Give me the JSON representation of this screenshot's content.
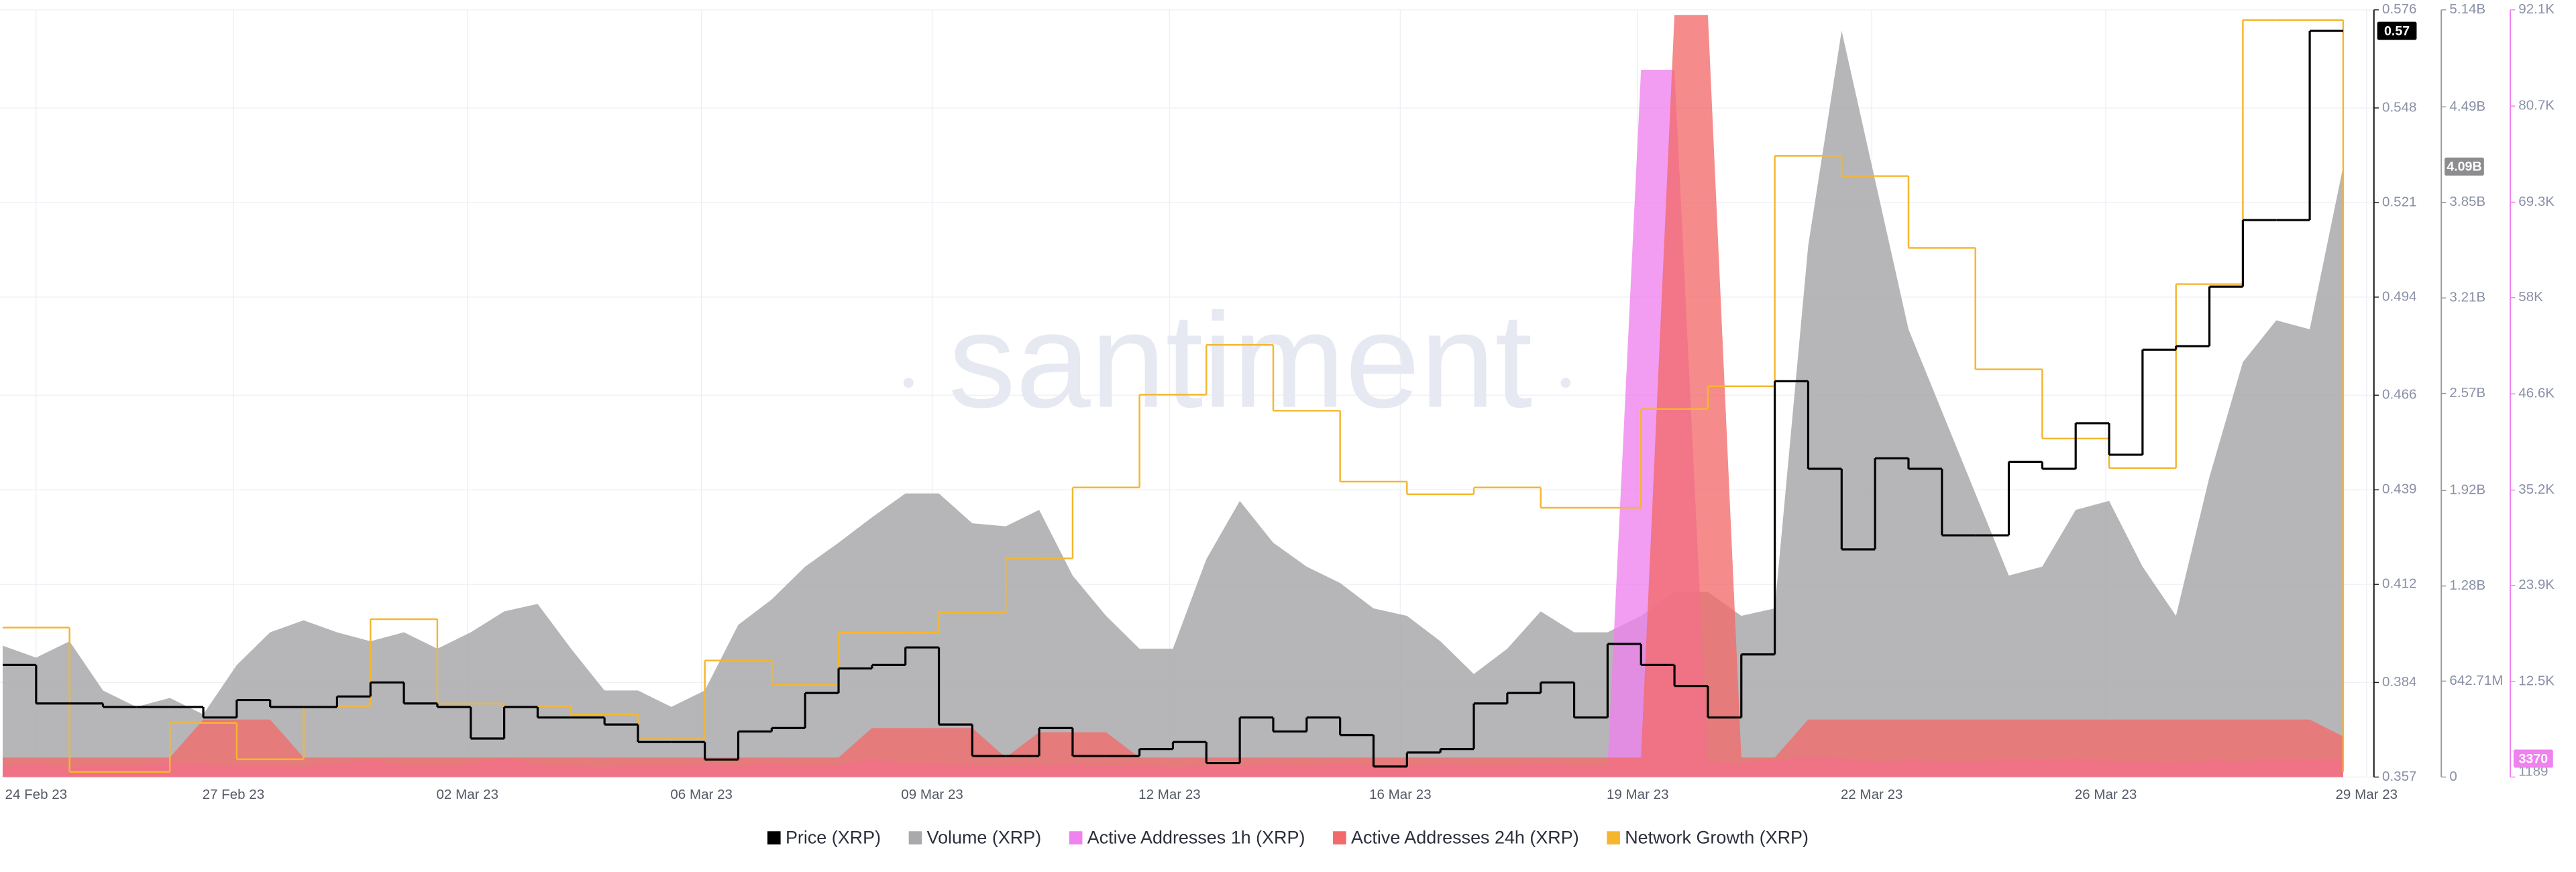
{
  "chart_data": {
    "type": "line",
    "watermark": "santiment",
    "grid": true,
    "legend": "bottom",
    "x": [
      -0.5,
      0,
      0.5,
      1,
      1.5,
      2,
      2.5,
      3,
      3.5,
      4,
      4.5,
      5,
      5.5,
      6,
      6.5,
      7,
      7.5,
      8,
      8.5,
      9,
      9.5,
      10,
      10.5,
      11,
      11.5,
      12,
      12.5,
      13,
      13.5,
      14,
      14.5,
      15,
      15.5,
      16,
      16.5,
      17,
      17.5,
      18,
      18.5,
      19,
      19.5,
      20,
      20.5,
      21,
      21.5,
      22,
      22.5,
      23,
      23.5,
      24,
      24.5,
      25,
      25.5,
      26,
      26.5,
      27,
      27.5,
      28,
      28.5,
      29,
      29.5,
      30,
      30.5,
      31,
      31.5,
      32,
      32.5,
      33,
      33.5,
      34,
      34.5
    ],
    "xlim": [
      -0.54,
      34.96
    ],
    "xticks": [
      {
        "value": 0,
        "label": "24 Feb 23"
      },
      {
        "value": 2.95,
        "label": "27 Feb 23"
      },
      {
        "value": 6.45,
        "label": "02 Mar 23"
      },
      {
        "value": 9.95,
        "label": "06 Mar 23"
      },
      {
        "value": 13.4,
        "label": "09 Mar 23"
      },
      {
        "value": 16.95,
        "label": "12 Mar 23"
      },
      {
        "value": 20.4,
        "label": "16 Mar 23"
      },
      {
        "value": 23.95,
        "label": "19 Mar 23"
      },
      {
        "value": 27.45,
        "label": "22 Mar 23"
      },
      {
        "value": 30.95,
        "label": "26 Mar 23"
      },
      {
        "value": 34.85,
        "label": "29 Mar 23"
      }
    ],
    "ylim": [
      0.357,
      0.576
    ],
    "yticks": [
      0.357,
      0.384,
      0.412,
      0.439,
      0.466,
      0.494,
      0.521,
      0.548,
      0.576
    ],
    "y2lim": [
      0,
      5140000000
    ],
    "y2ticks": [
      0,
      {
        "value": 642710000,
        "label": "642.71M"
      },
      {
        "value": 1280000000,
        "label": "1.28B"
      },
      {
        "value": 1920000000,
        "label": "1.92B"
      },
      {
        "value": 2570000000,
        "label": "2.57B"
      },
      {
        "value": 3210000000,
        "label": "3.21B"
      },
      {
        "value": 3850000000,
        "label": "3.85B"
      },
      {
        "value": 4490000000,
        "label": "4.49B"
      },
      {
        "value": 5140000000,
        "label": "5.14B"
      }
    ],
    "y3lim": [
      1189,
      92100
    ],
    "y3ticks": [
      1189,
      {
        "value": 12500,
        "label": "12.5K"
      },
      {
        "value": 23900,
        "label": "23.9K"
      },
      {
        "value": 35200,
        "label": "35.2K"
      },
      {
        "value": 46600,
        "label": "46.6K"
      },
      {
        "value": 58000,
        "label": "58K"
      },
      {
        "value": 69300,
        "label": "69.3K"
      },
      {
        "value": 80700,
        "label": "80.7K"
      },
      {
        "value": 92100,
        "label": "92.1K"
      }
    ],
    "series": [
      {
        "name": "Price (XRP)",
        "color": "#000000",
        "type": "step",
        "axis": "y",
        "last_value_label": "0.57",
        "values": [
          0.389,
          0.378,
          0.378,
          0.377,
          0.377,
          0.377,
          0.374,
          0.379,
          0.377,
          0.377,
          0.38,
          0.384,
          0.378,
          0.377,
          0.368,
          0.377,
          0.374,
          0.374,
          0.372,
          0.367,
          0.367,
          0.362,
          0.37,
          0.371,
          0.381,
          0.388,
          0.389,
          0.394,
          0.372,
          0.363,
          0.363,
          0.371,
          0.363,
          0.363,
          0.365,
          0.367,
          0.361,
          0.374,
          0.37,
          0.374,
          0.369,
          0.36,
          0.364,
          0.365,
          0.378,
          0.381,
          0.384,
          0.374,
          0.395,
          0.389,
          0.383,
          0.374,
          0.392,
          0.47,
          0.445,
          0.422,
          0.448,
          0.445,
          0.426,
          0.426,
          0.447,
          0.445,
          0.458,
          0.449,
          0.479,
          0.48,
          0.497,
          0.516,
          0.516,
          0.57,
          0.57
        ]
      },
      {
        "name": "Volume (XRP)",
        "color": "#a9a9ab",
        "type": "area",
        "axis": "y2",
        "last_value_label": "4.09B",
        "values": [
          880000000,
          800000000,
          910000000,
          580000000,
          470000000,
          530000000,
          420000000,
          750000000,
          970000000,
          1050000000,
          970000000,
          910000000,
          970000000,
          860000000,
          970000000,
          1110000000,
          1160000000,
          860000000,
          580000000,
          580000000,
          470000000,
          580000000,
          1020000000,
          1190000000,
          1410000000,
          1570000000,
          1740000000,
          1900000000,
          1900000000,
          1700000000,
          1680000000,
          1790000000,
          1350000000,
          1080000000,
          860000000,
          860000000,
          1460000000,
          1850000000,
          1570000000,
          1410000000,
          1300000000,
          1130000000,
          1080000000,
          910000000,
          690000000,
          860000000,
          1110000000,
          970000000,
          970000000,
          1080000000,
          1240000000,
          1240000000,
          1080000000,
          1130000000,
          3560000000,
          5000000000,
          4000000000,
          3000000000,
          2450000000,
          1900000000,
          1350000000,
          1410000000,
          1790000000,
          1850000000,
          1410000000,
          1080000000,
          2010000000,
          2780000000,
          3060000000,
          3000000000,
          4090000000
        ]
      },
      {
        "name": "Active Addresses 1h (XRP)",
        "color": "#ee82ee",
        "type": "area",
        "axis": "y3",
        "last_value_label": "3370",
        "values": [
          2500,
          2800,
          2400,
          2600,
          2500,
          3000,
          2700,
          2500,
          2600,
          2400,
          2800,
          3200,
          2600,
          2500,
          2700,
          3500,
          2600,
          2500,
          2400,
          2600,
          2500,
          2700,
          2600,
          2800,
          2500,
          2600,
          3400,
          2800,
          2700,
          2600,
          2500,
          2600,
          2700,
          2500,
          2600,
          2400,
          2500,
          2600,
          2700,
          2500,
          2800,
          2600,
          2500,
          2700,
          2600,
          2500,
          2800,
          2600,
          2500,
          85000,
          85000,
          3000,
          2800,
          3200,
          3600,
          3400,
          3000,
          3200,
          3100,
          3000,
          3300,
          3200,
          3400,
          3100,
          3000,
          2900,
          3200,
          3100,
          3300,
          3200,
          3370
        ]
      },
      {
        "name": "Active Addresses 24h (XRP)",
        "color": "#f26a6a",
        "type": "area",
        "axis": "y3",
        "values": [
          3500,
          3500,
          3500,
          3500,
          3500,
          3500,
          8000,
          8000,
          8000,
          3500,
          3500,
          3500,
          3500,
          3500,
          3500,
          3500,
          3500,
          3500,
          3500,
          3500,
          3500,
          3500,
          3500,
          3500,
          3500,
          3500,
          7000,
          7000,
          7000,
          7000,
          3500,
          6500,
          6500,
          6500,
          3500,
          3500,
          3500,
          3500,
          3500,
          3500,
          3500,
          3500,
          3500,
          3500,
          3500,
          3500,
          3500,
          3500,
          3500,
          3500,
          91500,
          91500,
          3500,
          3500,
          8000,
          8000,
          8000,
          8000,
          8000,
          8000,
          8000,
          8000,
          8000,
          8000,
          8000,
          8000,
          8000,
          8000,
          8000,
          8000,
          6000
        ]
      },
      {
        "name": "Network Growth (XRP)",
        "color": "#f5b62e",
        "type": "step",
        "axis": "y3",
        "values": [
          18900,
          18900,
          1800,
          1800,
          1800,
          7600,
          7600,
          3300,
          3300,
          9600,
          9600,
          19900,
          19900,
          9900,
          9900,
          9600,
          9600,
          8600,
          8600,
          5700,
          5700,
          15000,
          15000,
          12100,
          12100,
          18300,
          18300,
          18300,
          20700,
          20700,
          27100,
          27100,
          35500,
          35500,
          46500,
          46500,
          52400,
          52400,
          44600,
          44600,
          36200,
          36200,
          34700,
          34700,
          35500,
          35500,
          33100,
          33100,
          33100,
          44800,
          44800,
          47500,
          47500,
          74800,
          74800,
          72400,
          72400,
          63900,
          63900,
          49500,
          49500,
          41300,
          41300,
          37800,
          37800,
          59600,
          59600,
          90900,
          90900,
          90900,
          1800
        ]
      }
    ]
  }
}
